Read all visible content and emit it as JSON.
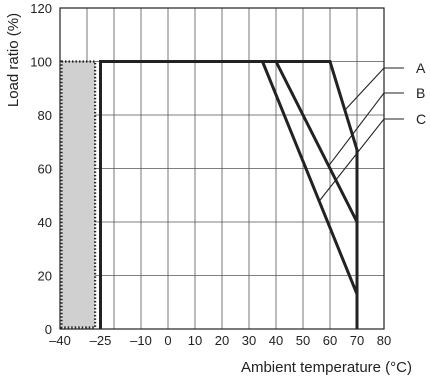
{
  "chart_data": {
    "type": "line",
    "title": "",
    "xlabel": "Ambient temperature (°C)",
    "ylabel": "Load ratio (%)",
    "xlim": [
      -40,
      80
    ],
    "ylim": [
      0,
      120
    ],
    "x_ticks": [
      {
        "value": -40,
        "label": "–40"
      },
      {
        "value": -25,
        "label": "–25"
      },
      {
        "value": -10,
        "label": "–10"
      },
      {
        "value": 0,
        "label": "0"
      },
      {
        "value": 10,
        "label": "10"
      },
      {
        "value": 20,
        "label": "20"
      },
      {
        "value": 30,
        "label": "30"
      },
      {
        "value": 40,
        "label": "40"
      },
      {
        "value": 50,
        "label": "50"
      },
      {
        "value": 60,
        "label": "60"
      },
      {
        "value": 70,
        "label": "70"
      },
      {
        "value": 80,
        "label": "80"
      }
    ],
    "y_ticks": [
      0,
      20,
      40,
      60,
      80,
      100,
      120
    ],
    "grid": true,
    "shaded_region": {
      "x": [
        -40,
        -27
      ],
      "y": [
        0,
        100
      ],
      "color": "#d0d0d0",
      "border": "dotted"
    },
    "series": [
      {
        "name": "A",
        "points": [
          [
            -25,
            0
          ],
          [
            -25,
            100
          ],
          [
            60,
            100
          ],
          [
            70,
            67
          ],
          [
            70,
            0
          ]
        ]
      },
      {
        "name": "B",
        "points": [
          [
            -25,
            0
          ],
          [
            -25,
            100
          ],
          [
            40,
            100
          ],
          [
            70,
            40
          ],
          [
            70,
            0
          ]
        ]
      },
      {
        "name": "C",
        "points": [
          [
            -25,
            0
          ],
          [
            -25,
            100
          ],
          [
            35,
            100
          ],
          [
            70,
            13
          ],
          [
            70,
            0
          ]
        ]
      }
    ],
    "series_color": "#222222"
  }
}
